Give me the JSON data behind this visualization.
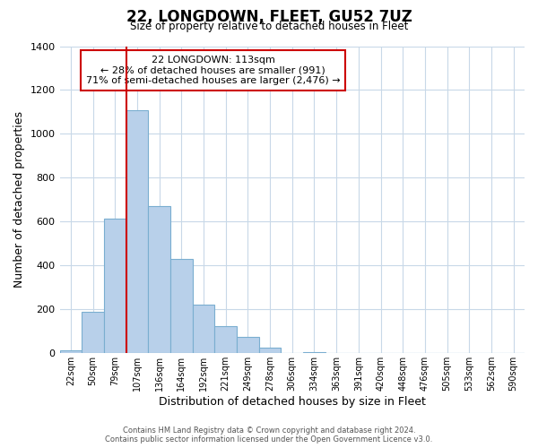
{
  "title": "22, LONGDOWN, FLEET, GU52 7UZ",
  "subtitle": "Size of property relative to detached houses in Fleet",
  "xlabel": "Distribution of detached houses by size in Fleet",
  "ylabel": "Number of detached properties",
  "bar_labels": [
    "22sqm",
    "50sqm",
    "79sqm",
    "107sqm",
    "136sqm",
    "164sqm",
    "192sqm",
    "221sqm",
    "249sqm",
    "278sqm",
    "306sqm",
    "334sqm",
    "363sqm",
    "391sqm",
    "420sqm",
    "448sqm",
    "476sqm",
    "505sqm",
    "533sqm",
    "562sqm",
    "590sqm"
  ],
  "bar_heights": [
    15,
    190,
    615,
    1110,
    670,
    430,
    220,
    125,
    75,
    25,
    0,
    5,
    0,
    0,
    0,
    0,
    0,
    0,
    0,
    0,
    0
  ],
  "bar_color": "#b8d0ea",
  "bar_edge_color": "#7aaed0",
  "vline_color": "#cc0000",
  "vline_bar_index": 3,
  "ylim": [
    0,
    1400
  ],
  "yticks": [
    0,
    200,
    400,
    600,
    800,
    1000,
    1200,
    1400
  ],
  "annotation_title": "22 LONGDOWN: 113sqm",
  "annotation_line1": "← 28% of detached houses are smaller (991)",
  "annotation_line2": "71% of semi-detached houses are larger (2,476) →",
  "annotation_box_color": "#ffffff",
  "annotation_box_edgecolor": "#cc0000",
  "footer1": "Contains HM Land Registry data © Crown copyright and database right 2024.",
  "footer2": "Contains public sector information licensed under the Open Government Licence v3.0.",
  "background_color": "#ffffff",
  "grid_color": "#c8d8e8"
}
